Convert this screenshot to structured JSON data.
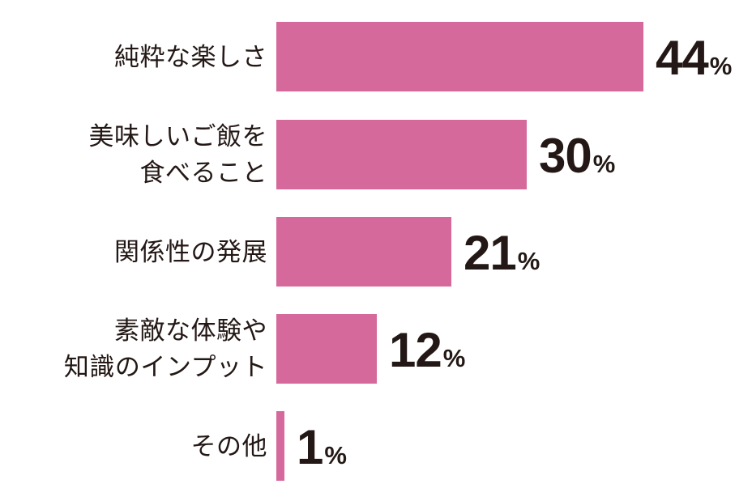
{
  "chart_data": {
    "type": "bar",
    "orientation": "horizontal",
    "title": "",
    "xlabel": "",
    "ylabel": "",
    "grid": false,
    "legend": false,
    "unit": "%",
    "categories": [
      "純粋な楽しさ",
      "美味しいご飯を\n食べること",
      "関係性の発展",
      "素敵な体験や\n知識のインプット",
      "その他"
    ],
    "values": [
      44,
      30,
      21,
      12,
      1
    ],
    "value_labels": [
      "44",
      "30",
      "21",
      "12",
      "1"
    ],
    "xlim": [
      0,
      57
    ],
    "value_label_position": "right-of-bar",
    "bar_color": "#d6699c",
    "label_color": "#231815",
    "value_color": "#231815",
    "background_color": "#ffffff"
  }
}
